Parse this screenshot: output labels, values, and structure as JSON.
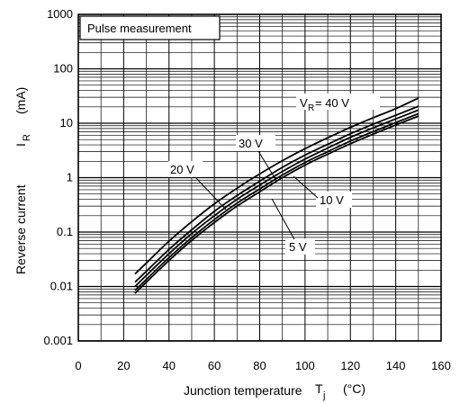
{
  "chart_data": {
    "type": "line",
    "title": "",
    "annotation_box": "Pulse measurement",
    "xlabel": {
      "text": "Junction temperature",
      "symbol": "T",
      "symbol_sub": "j",
      "unit": "(°C)"
    },
    "ylabel": {
      "text": "Reverse current",
      "symbol": "I",
      "symbol_sub": "R",
      "unit": "(mA)"
    },
    "xlim": [
      0,
      160
    ],
    "ylim": [
      0.001,
      1000
    ],
    "yscale": "log",
    "grid": true,
    "x_ticks": [
      "0",
      "20",
      "40",
      "60",
      "80",
      "100",
      "120",
      "140",
      "160"
    ],
    "y_ticks": [
      "0.001",
      "0.01",
      "0.1",
      "1",
      "10",
      "100",
      "1000"
    ],
    "series": [
      {
        "name": "5 V",
        "x": [
          25,
          30,
          40,
          50,
          60,
          70,
          80,
          90,
          100,
          110,
          120,
          130,
          140,
          150
        ],
        "values": [
          0.0075,
          0.012,
          0.03,
          0.07,
          0.15,
          0.3,
          0.55,
          1.0,
          1.7,
          2.7,
          4.2,
          6.3,
          9.3,
          13.5
        ]
      },
      {
        "name": "10 V",
        "x": [
          25,
          30,
          40,
          50,
          60,
          70,
          80,
          90,
          100,
          110,
          120,
          130,
          140,
          150
        ],
        "values": [
          0.0085,
          0.0135,
          0.034,
          0.079,
          0.17,
          0.34,
          0.62,
          1.12,
          1.9,
          3.0,
          4.7,
          7.0,
          10.3,
          15.0
        ]
      },
      {
        "name": "20 V",
        "x": [
          25,
          30,
          40,
          50,
          60,
          70,
          80,
          90,
          100,
          110,
          120,
          130,
          140,
          150
        ],
        "values": [
          0.01,
          0.016,
          0.04,
          0.094,
          0.2,
          0.4,
          0.73,
          1.3,
          2.2,
          3.5,
          5.5,
          8.2,
          12.0,
          17.5
        ]
      },
      {
        "name": "30 V",
        "x": [
          25,
          30,
          40,
          50,
          60,
          70,
          80,
          90,
          100,
          110,
          120,
          130,
          140,
          150
        ],
        "values": [
          0.012,
          0.019,
          0.048,
          0.11,
          0.24,
          0.47,
          0.86,
          1.55,
          2.6,
          4.1,
          6.4,
          9.6,
          14.0,
          20.5
        ]
      },
      {
        "name": "V_R = 40 V",
        "x": [
          25,
          30,
          40,
          50,
          60,
          70,
          80,
          90,
          100,
          110,
          120,
          130,
          140,
          150
        ],
        "values": [
          0.017,
          0.027,
          0.068,
          0.155,
          0.33,
          0.64,
          1.17,
          2.05,
          3.4,
          5.4,
          8.4,
          12.6,
          18.5,
          29.0
        ]
      }
    ],
    "labels": {
      "v40": "V",
      "v40_sub": "R",
      "v40_rest": " = 40 V",
      "v30": "30 V",
      "v20": "20 V",
      "v10": "10 V",
      "v5": "5 V"
    }
  }
}
